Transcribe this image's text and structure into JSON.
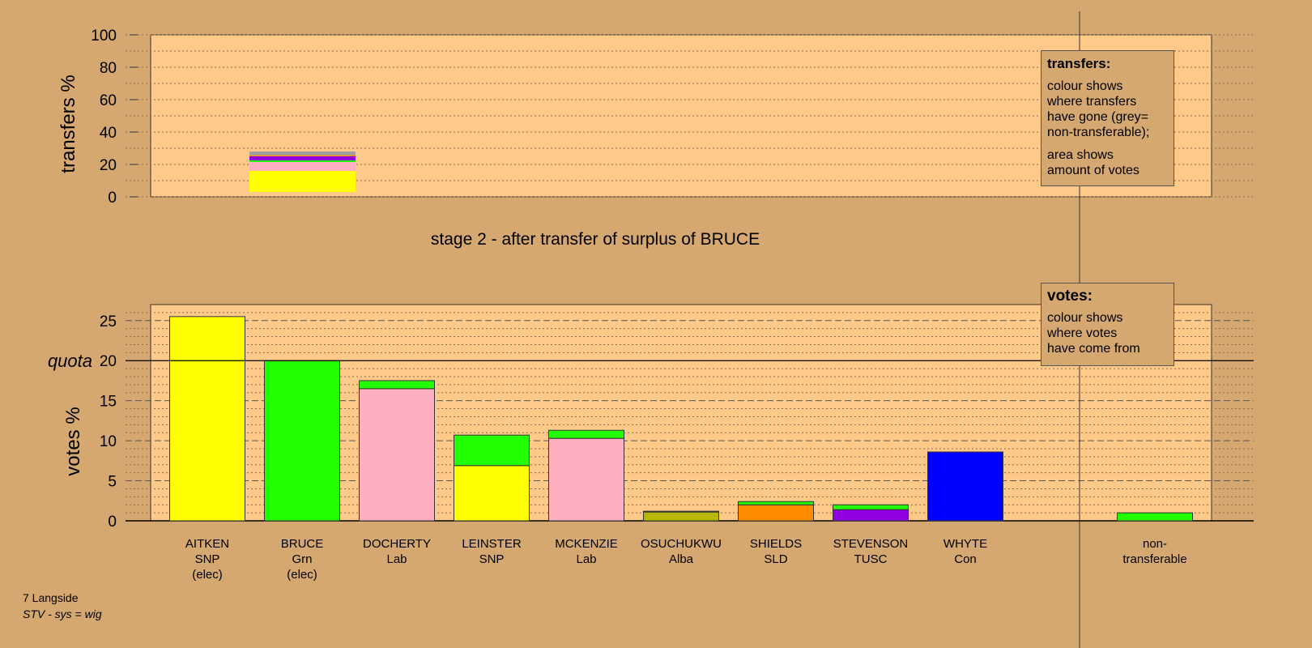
{
  "colors": {
    "background": "#d4a870",
    "plot_background": "#ffc98a",
    "SNP": "#ffff00",
    "Grn": "#22ff00",
    "Lab": "#ffb0c0",
    "Alba": "#b8b800",
    "SLD": "#ff8c00",
    "TUSC": "#9000e0",
    "Con": "#0000ff",
    "non_transferable": "#a0a0a0"
  },
  "chart_data": [
    {
      "type": "bar",
      "ylabel": "transfers %",
      "ylim": [
        0,
        100
      ],
      "yticks": [
        "0",
        "20",
        "40",
        "60",
        "80",
        "100"
      ],
      "grid": true,
      "segments": [
        {
          "party": "SNP",
          "from": 3,
          "to": 16
        },
        {
          "party": "Lab",
          "from": 16,
          "to": 21.5
        },
        {
          "party": "Grn",
          "from": 21.5,
          "to": 22.5
        },
        {
          "party": "TUSC",
          "from": 22.5,
          "to": 25
        },
        {
          "party": "SLD",
          "from": 25,
          "to": 25.7
        },
        {
          "party": "non_transferable",
          "from": 25.7,
          "to": 28
        }
      ]
    },
    {
      "type": "bar",
      "title": "stage 2 - after transfer of surplus of BRUCE",
      "ylabel": "votes %",
      "quota_label": "quota",
      "quota": 20,
      "ylim": [
        0,
        27
      ],
      "yticks": [
        "0",
        "5",
        "10",
        "15",
        "20",
        "25"
      ],
      "grid": true,
      "categories": [
        {
          "name": "AITKEN",
          "party": "SNP",
          "status": "(elec)"
        },
        {
          "name": "BRUCE",
          "party": "Grn",
          "status": "(elec)"
        },
        {
          "name": "DOCHERTY",
          "party": "Lab",
          "status": ""
        },
        {
          "name": "LEINSTER",
          "party": "SNP",
          "status": ""
        },
        {
          "name": "MCKENZIE",
          "party": "Lab",
          "status": ""
        },
        {
          "name": "OSUCHUKWU",
          "party": "Alba",
          "status": ""
        },
        {
          "name": "SHIELDS",
          "party": "SLD",
          "status": ""
        },
        {
          "name": "STEVENSON",
          "party": "TUSC",
          "status": ""
        },
        {
          "name": "WHYTE",
          "party": "Con",
          "status": ""
        }
      ],
      "nontransferable_label": [
        "non-",
        "transferable"
      ],
      "bars": [
        [
          {
            "party": "SNP",
            "value": 25.5
          }
        ],
        [
          {
            "party": "Grn",
            "value": 20.0
          }
        ],
        [
          {
            "party": "Lab",
            "value": 16.5
          },
          {
            "party": "Grn",
            "value": 1.0
          }
        ],
        [
          {
            "party": "SNP",
            "value": 6.9
          },
          {
            "party": "Grn",
            "value": 3.8
          }
        ],
        [
          {
            "party": "Lab",
            "value": 10.3
          },
          {
            "party": "Grn",
            "value": 1.0
          }
        ],
        [
          {
            "party": "Alba",
            "value": 1.1
          },
          {
            "party": "Grn",
            "value": 0.1
          }
        ],
        [
          {
            "party": "SLD",
            "value": 2.0
          },
          {
            "party": "Grn",
            "value": 0.4
          }
        ],
        [
          {
            "party": "TUSC",
            "value": 1.4
          },
          {
            "party": "Grn",
            "value": 0.6
          }
        ],
        [
          {
            "party": "Con",
            "value": 8.6
          }
        ],
        [
          {
            "party": "Grn",
            "value": 1.0
          }
        ]
      ]
    }
  ],
  "legend_transfers": {
    "title": "transfers:",
    "text1": [
      "colour shows",
      "where transfers",
      "have gone (grey=",
      "non-transferable);"
    ],
    "text2": [
      "area shows",
      "amount of votes"
    ]
  },
  "legend_votes": {
    "title": "votes:",
    "text": [
      "colour shows",
      "where votes",
      "have come from"
    ]
  },
  "footer": {
    "ward": "7 Langside",
    "system": "STV - sys = wig"
  }
}
